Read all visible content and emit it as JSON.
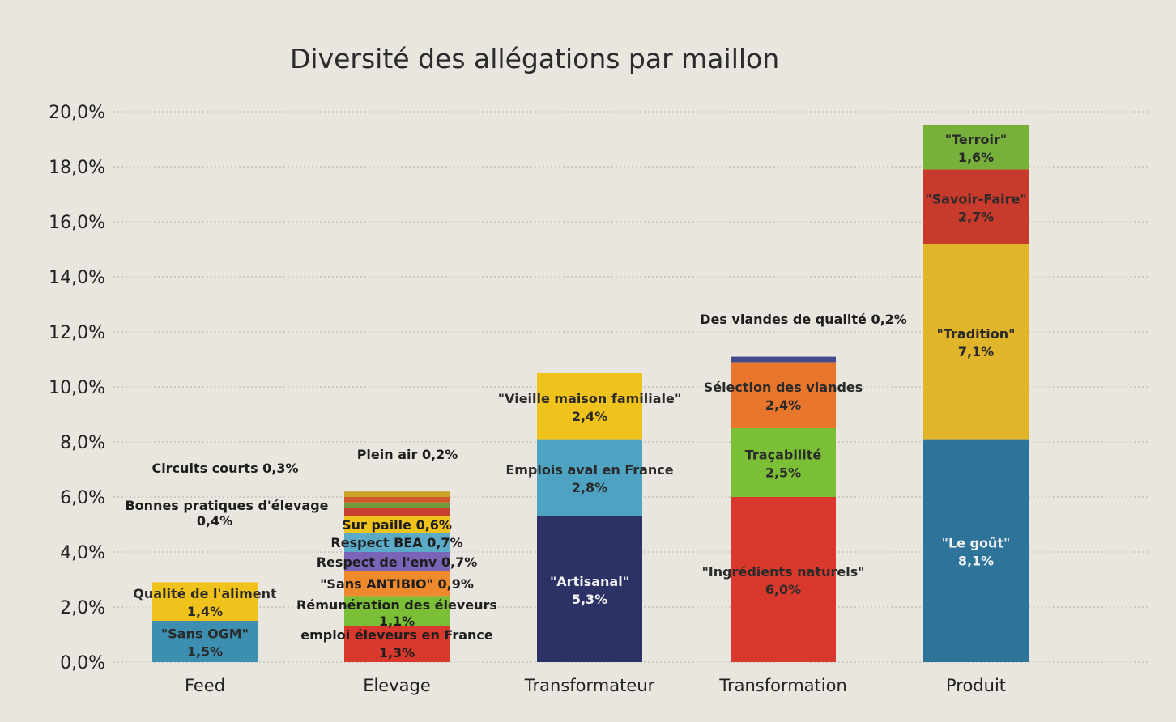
{
  "chart_data": {
    "type": "bar",
    "stacked": true,
    "title": "Diversité des allégations par maillon",
    "xlabel": "",
    "ylabel": "",
    "ylim": [
      0,
      20
    ],
    "ytick_labels": [
      "0,0%",
      "2,0%",
      "4,0%",
      "6,0%",
      "8,0%",
      "10,0%",
      "12,0%",
      "14,0%",
      "16,0%",
      "18,0%",
      "20,0%"
    ],
    "grid": true,
    "categories": [
      "Feed",
      "Elevage",
      "Transformateur",
      "Transformation",
      "Produit"
    ],
    "stacks": [
      {
        "category": "Feed",
        "segments": [
          {
            "name": "\"Sans OGM\"",
            "value": 1.5,
            "value_label": "1,5%",
            "color": "#3c8fb0",
            "label_mode": "inside"
          },
          {
            "name": "Qualité de l'aliment",
            "value": 1.4,
            "value_label": "1,4%",
            "color": "#f0c21c",
            "label_mode": "inside"
          },
          {
            "name": "Bonnes pratiques d'élevage",
            "value": 0.4,
            "value_label": "0,4%",
            "color": "#e9e6e0",
            "label_mode": "outside"
          },
          {
            "name": "Circuits courts",
            "value": 0.3,
            "value_label": "0,3%",
            "color": "#e9e6e0",
            "label_mode": "outside"
          }
        ]
      },
      {
        "category": "Elevage",
        "segments": [
          {
            "name": "emploi éleveurs en France",
            "value": 1.3,
            "value_label": "1,3%",
            "color": "#d8392c",
            "label_mode": "inside-line"
          },
          {
            "name": "Rémunération des éleveurs",
            "value": 1.1,
            "value_label": "1,1%",
            "color": "#7bbf36",
            "label_mode": "inside-line"
          },
          {
            "name": "\"Sans ANTIBIO\"",
            "value": 0.9,
            "value_label": "0,9%",
            "color": "#ef8a2c",
            "label_mode": "inside-line"
          },
          {
            "name": "Respect de l'env",
            "value": 0.7,
            "value_label": "0,7%",
            "color": "#7a64b8",
            "label_mode": "inside-line"
          },
          {
            "name": "Respect BEA",
            "value": 0.7,
            "value_label": "0,7%",
            "color": "#5aaac8",
            "label_mode": "inside-line"
          },
          {
            "name": "Sur paille",
            "value": 0.6,
            "value_label": "0,6%",
            "color": "#f0c21c",
            "label_mode": "inside-line"
          },
          {
            "name": "",
            "value": 0.3,
            "color": "#c8402e",
            "label_mode": "none"
          },
          {
            "name": "",
            "value": 0.2,
            "color": "#6e9a3a",
            "label_mode": "none"
          },
          {
            "name": "",
            "value": 0.2,
            "color": "#cf5a2a",
            "label_mode": "none"
          },
          {
            "name": "Plein air",
            "value": 0.2,
            "value_label": "0,2%",
            "color": "#c9a22a",
            "label_mode": "outside"
          }
        ]
      },
      {
        "category": "Transformateur",
        "segments": [
          {
            "name": "\"Artisanal\"",
            "value": 5.3,
            "value_label": "5,3%",
            "color": "#2c3266",
            "label_mode": "inside"
          },
          {
            "name": "Emplois aval en France",
            "value": 2.8,
            "value_label": "2,8%",
            "color": "#4ea3c3",
            "label_mode": "inside"
          },
          {
            "name": "\"Vieille maison familiale\"",
            "value": 2.4,
            "value_label": "2,4%",
            "color": "#f0c21c",
            "label_mode": "inside"
          }
        ]
      },
      {
        "category": "Transformation",
        "segments": [
          {
            "name": "\"Ingrédients naturels\"",
            "value": 6.0,
            "value_label": "6,0%",
            "color": "#d8392c",
            "label_mode": "inside"
          },
          {
            "name": "Traçabilité",
            "value": 2.5,
            "value_label": "2,5%",
            "color": "#7bbf36",
            "label_mode": "inside"
          },
          {
            "name": "Sélection des viandes",
            "value": 2.4,
            "value_label": "2,4%",
            "color": "#e8762c",
            "label_mode": "inside"
          },
          {
            "name": "Des viandes de qualité",
            "value": 0.2,
            "value_label": "0,2%",
            "color": "#434a8e",
            "label_mode": "outside"
          }
        ]
      },
      {
        "category": "Produit",
        "segments": [
          {
            "name": "\"Le goût\"",
            "value": 8.1,
            "value_label": "8,1%",
            "color": "#2e7399",
            "label_mode": "inside"
          },
          {
            "name": "\"Tradition\"",
            "value": 7.1,
            "value_label": "7,1%",
            "color": "#e0b52a",
            "label_mode": "inside"
          },
          {
            "name": "\"Savoir-Faire\"",
            "value": 2.7,
            "value_label": "2,7%",
            "color": "#c73a2c",
            "label_mode": "inside"
          },
          {
            "name": "\"Terroir\"",
            "value": 1.6,
            "value_label": "1,6%",
            "color": "#78b03c",
            "label_mode": "inside"
          }
        ]
      }
    ]
  }
}
